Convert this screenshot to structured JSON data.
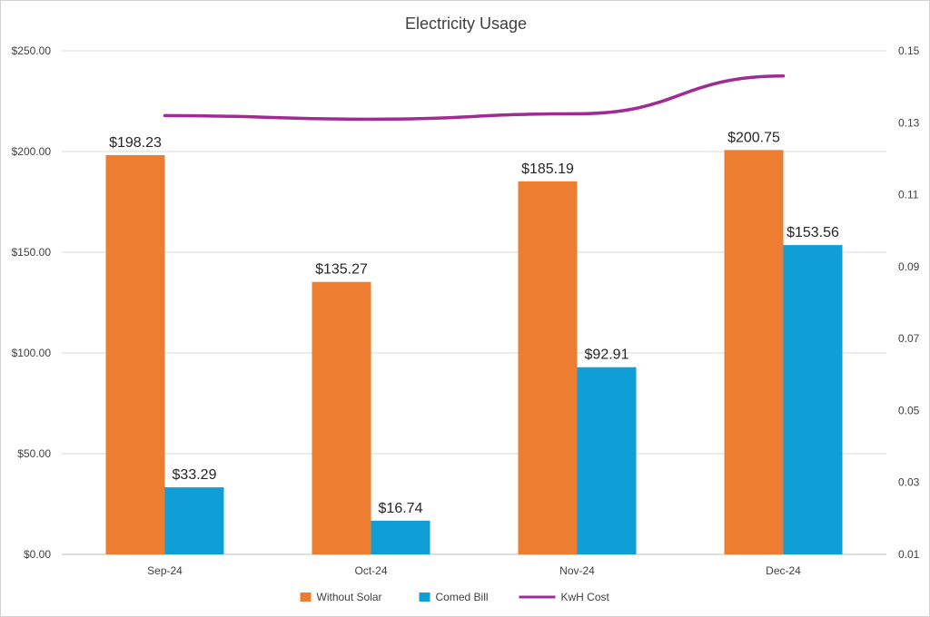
{
  "chart_data": {
    "type": "bar",
    "title": "Electricity Usage",
    "categories": [
      "Sep-24",
      "Oct-24",
      "Nov-24",
      "Dec-24"
    ],
    "series": [
      {
        "name": "Without Solar",
        "type": "bar",
        "axis": "left",
        "color": "#ED7D31",
        "values": [
          198.23,
          135.27,
          185.19,
          200.75
        ],
        "labels": [
          "$198.23",
          "$135.27",
          "$185.19",
          "$200.75"
        ]
      },
      {
        "name": "Comed Bill",
        "type": "bar",
        "axis": "left",
        "color": "#0F9ED5",
        "values": [
          33.29,
          16.74,
          92.91,
          153.56
        ],
        "labels": [
          "$33.29",
          "$16.74",
          "$92.91",
          "$153.56"
        ]
      },
      {
        "name": "KwH Cost",
        "type": "line",
        "axis": "right",
        "color": "#A02B93",
        "values": [
          0.132,
          0.131,
          0.1325,
          0.143
        ]
      }
    ],
    "y_left": {
      "ylim": [
        0,
        250
      ],
      "ticks": [
        0,
        50,
        100,
        150,
        200,
        250
      ],
      "tick_labels": [
        "$0.00",
        "$50.00",
        "$100.00",
        "$150.00",
        "$200.00",
        "$250.00"
      ]
    },
    "y_right": {
      "ylim": [
        0.01,
        0.15
      ],
      "ticks": [
        0.01,
        0.03,
        0.05,
        0.07,
        0.09,
        0.11,
        0.13,
        0.15
      ],
      "tick_labels": [
        "0.01",
        "0.03",
        "0.05",
        "0.07",
        "0.09",
        "0.11",
        "0.13",
        "0.15"
      ]
    },
    "grid": true,
    "legend_position": "bottom"
  }
}
